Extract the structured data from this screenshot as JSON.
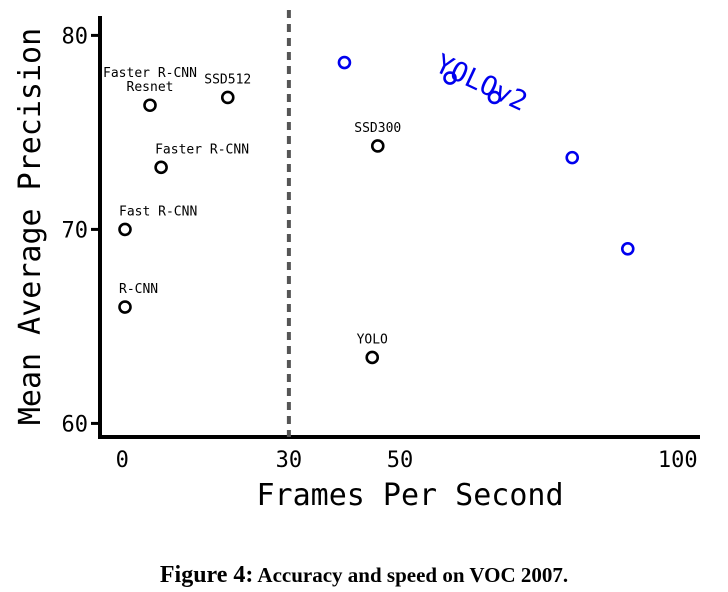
{
  "chart_data": {
    "type": "scatter",
    "xlabel": "Frames Per Second",
    "ylabel": "Mean Average Precision",
    "xlim": [
      -4,
      104
    ],
    "ylim": [
      59.3,
      81
    ],
    "xticks": [
      0,
      30,
      50,
      100
    ],
    "yticks": [
      60,
      70,
      80
    ],
    "realtime_threshold_x": 30,
    "series": [
      {
        "name": "YOLOv2",
        "color": "#0000ee",
        "points": [
          {
            "x": 40,
            "y": 78.6
          },
          {
            "x": 59,
            "y": 77.8
          },
          {
            "x": 67,
            "y": 76.8
          },
          {
            "x": 81,
            "y": 73.7
          },
          {
            "x": 91,
            "y": 69.0
          }
        ]
      },
      {
        "color": "#000000",
        "points": [
          {
            "x": 0.5,
            "y": 66.0,
            "label": "R-CNN"
          },
          {
            "x": 0.5,
            "y": 70.0,
            "label": "Fast R-CNN"
          },
          {
            "x": 7,
            "y": 73.2,
            "label": "Faster R-CNN"
          },
          {
            "x": 5,
            "y": 76.4,
            "label": "Faster R-CNN Resnet"
          },
          {
            "x": 19,
            "y": 76.8,
            "label": "SSD512"
          },
          {
            "x": 46,
            "y": 74.3,
            "label": "SSD300"
          },
          {
            "x": 45,
            "y": 63.4,
            "label": "YOLO"
          }
        ]
      }
    ]
  },
  "caption": {
    "label": "Figure 4:",
    "text": "Accuracy and speed on VOC 2007."
  }
}
